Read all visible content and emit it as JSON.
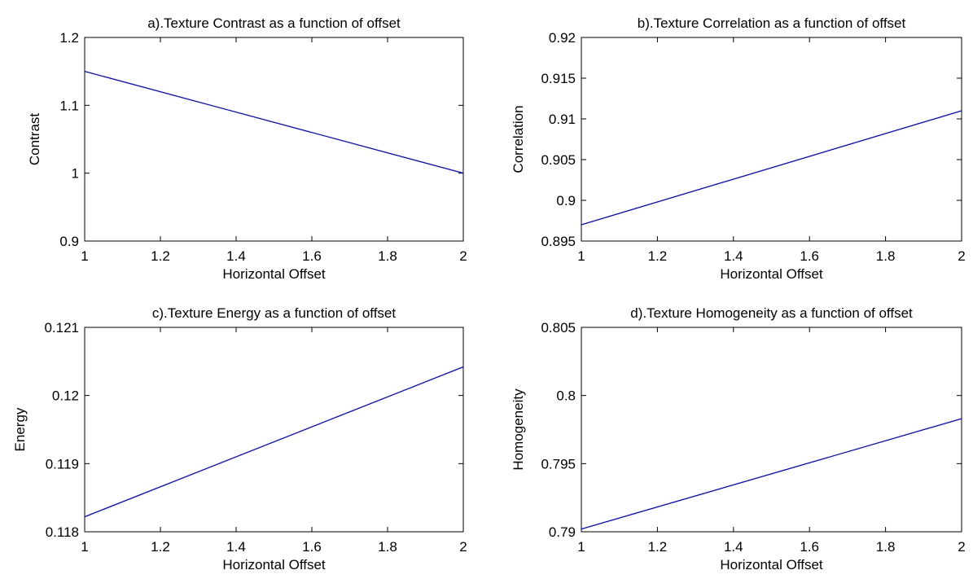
{
  "chart_data": [
    {
      "type": "line",
      "title": "a).Texture Contrast as a function of offset",
      "xlabel": "Horizontal Offset",
      "ylabel": "Contrast",
      "xlim": [
        1,
        2
      ],
      "ylim": [
        0.9,
        1.2
      ],
      "xticks": [
        "1",
        "1.2",
        "1.4",
        "1.6",
        "1.8",
        "2"
      ],
      "yticks": [
        "0.9",
        "1",
        "1.1",
        "1.2"
      ],
      "series": [
        {
          "x": [
            1,
            2
          ],
          "values": [
            1.15,
            1.0
          ],
          "color": "#0000ff"
        }
      ],
      "grid": false
    },
    {
      "type": "line",
      "title": "b).Texture Correlation as a function of offset",
      "xlabel": "Horizontal Offset",
      "ylabel": "Correlation",
      "xlim": [
        1,
        2
      ],
      "ylim": [
        0.895,
        0.92
      ],
      "xticks": [
        "1",
        "1.2",
        "1.4",
        "1.6",
        "1.8",
        "2"
      ],
      "yticks": [
        "0.895",
        "0.9",
        "0.905",
        "0.91",
        "0.915",
        "0.92"
      ],
      "series": [
        {
          "x": [
            1,
            2
          ],
          "values": [
            0.897,
            0.911
          ],
          "color": "#0000ff"
        }
      ],
      "grid": false
    },
    {
      "type": "line",
      "title": "c).Texture Energy as a function of offset",
      "xlabel": "Horizontal Offset",
      "ylabel": "Energy",
      "xlim": [
        1,
        2
      ],
      "ylim": [
        0.118,
        0.121
      ],
      "xticks": [
        "1",
        "1.2",
        "1.4",
        "1.6",
        "1.8",
        "2"
      ],
      "yticks": [
        "0.118",
        "0.119",
        "0.12",
        "0.121"
      ],
      "series": [
        {
          "x": [
            1,
            2
          ],
          "values": [
            0.11822,
            0.12042
          ],
          "color": "#0000ff"
        }
      ],
      "grid": false
    },
    {
      "type": "line",
      "title": "d).Texture Homogeneity as a function of offset",
      "xlabel": "Horizontal Offset",
      "ylabel": "Homogeneity",
      "xlim": [
        1,
        2
      ],
      "ylim": [
        0.79,
        0.805
      ],
      "xticks": [
        "1",
        "1.2",
        "1.4",
        "1.6",
        "1.8",
        "2"
      ],
      "yticks": [
        "0.79",
        "0.795",
        "0.8",
        "0.805"
      ],
      "series": [
        {
          "x": [
            1,
            2
          ],
          "values": [
            0.7902,
            0.7983
          ],
          "color": "#0000ff"
        }
      ],
      "grid": false
    }
  ]
}
